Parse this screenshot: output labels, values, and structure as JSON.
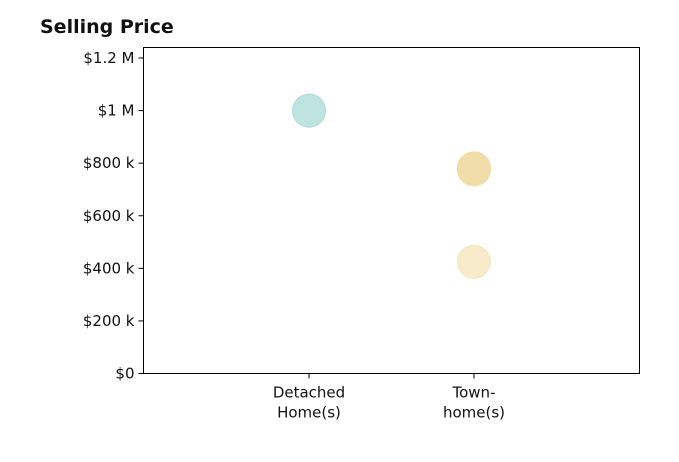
{
  "chart_data": {
    "type": "scatter",
    "title": "Selling Price",
    "xlabel": "",
    "ylabel": "",
    "categories": [
      [
        "Detached",
        "Home(s)"
      ],
      [
        "Town-",
        "home(s)"
      ]
    ],
    "ylim": [
      0,
      1240000
    ],
    "yticks": [
      {
        "value": 0,
        "label": "$0"
      },
      {
        "value": 200000,
        "label": "$200 k"
      },
      {
        "value": 400000,
        "label": "$400 k"
      },
      {
        "value": 600000,
        "label": "$600 k"
      },
      {
        "value": 800000,
        "label": "$800 k"
      },
      {
        "value": 1000000,
        "label": "$1 M"
      },
      {
        "value": 1200000,
        "label": "$1.2 M"
      }
    ],
    "points": [
      {
        "category_index": 0,
        "value": 1000000,
        "color": "#a9d9d4",
        "opacity": 0.75
      },
      {
        "category_index": 1,
        "value": 780000,
        "color": "#f0d9a0",
        "opacity": 0.8
      },
      {
        "category_index": 1,
        "value": 775000,
        "color": "#f0d9a0",
        "opacity": 0.45
      },
      {
        "category_index": 1,
        "value": 425000,
        "color": "#f4e2b6",
        "opacity": 0.7
      }
    ],
    "grid": false,
    "legend": "none"
  }
}
